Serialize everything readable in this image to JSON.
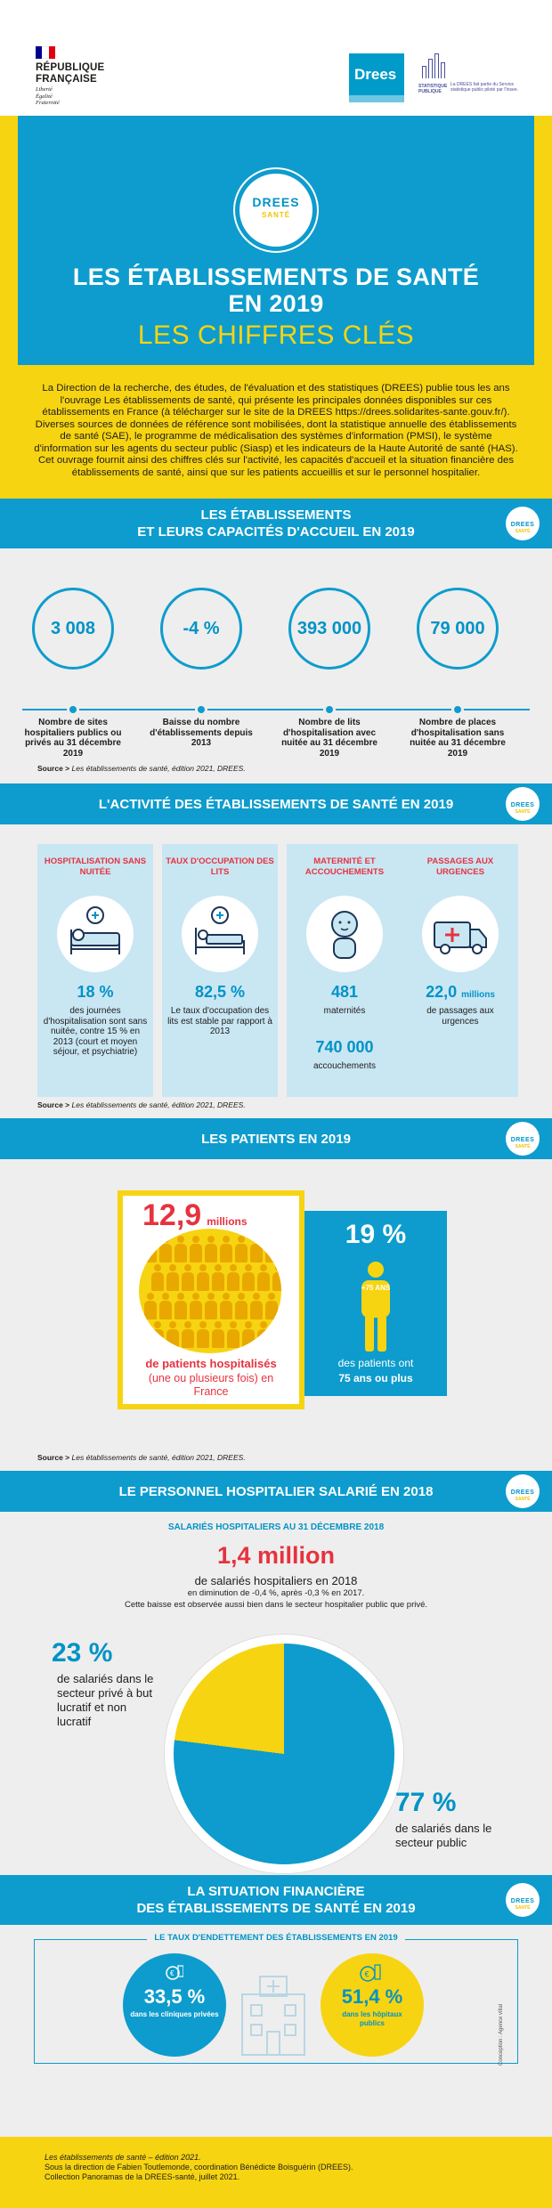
{
  "header": {
    "republique_line1": "RÉPUBLIQUE",
    "republique_line2": "FRANÇAISE",
    "devise": [
      "Liberté",
      "Égalité",
      "Fraternité"
    ],
    "drees_logo": "Drees",
    "ssp_line1": "STATISTIQUE",
    "ssp_line2": "PUBLIQUE",
    "ssp_desc": "La DREES fait partie du Service statistique public piloté par l'Insee.",
    "colors": {
      "marianne_blue": "#000091",
      "marianne_red": "#e1000f"
    }
  },
  "hero": {
    "badge_top": "DREES",
    "badge_bottom": "SANTÉ",
    "title_line1": "LES ÉTABLISSEMENTS DE SANTÉ",
    "title_line2": "EN 2019",
    "subtitle": "LES CHIFFRES CLÉS"
  },
  "intro": {
    "text": "La Direction de la recherche, des études, de l'évaluation et des statistiques (DREES) publie tous les ans l'ouvrage Les établissements de santé, qui présente les principales données disponibles sur ces établissements en France (à télécharger sur le site de la DREES https://drees.solidarites-sante.gouv.fr/). Diverses sources de données de référence sont mobilisées, dont la statistique annuelle des établissements de santé (SAE), le programme de médicalisation des systèmes d'information (PMSI), le système d'information sur les agents du secteur public (Siasp) et les indicateurs de la Haute Autorité de santé (HAS). Cet ouvrage fournit ainsi des chiffres clés sur l'activité, les capacités d'accueil et la situation financière des établissements de santé, ainsi que sur les patients accueillis et sur le personnel hospitalier."
  },
  "badge_small": {
    "top": "DREES",
    "bottom": "SANTÉ"
  },
  "section1": {
    "title_line1": "LES ÉTABLISSEMENTS",
    "title_line2": "ET LEURS CAPACITÉS D'ACCUEIL EN 2019",
    "stats": [
      {
        "value": "3 008",
        "caption": "Nombre de sites hospitaliers publics ou privés au 31 décembre 2019"
      },
      {
        "value": "-4 %",
        "caption": "Baisse du nombre d'établissements depuis 2013"
      },
      {
        "value": "393 000",
        "caption": "Nombre de lits d'hospitalisation avec nuitée au 31 décembre 2019"
      },
      {
        "value": "79 000",
        "caption": "Nombre de places d'hospitalisation sans nuitée au 31 décembre 2019"
      }
    ],
    "source_label": "Source >",
    "source_text": "Les établissements de santé, édition 2021, DREES."
  },
  "section2": {
    "title": "L'ACTIVITÉ DES ÉTABLISSEMENTS DE SANTÉ EN 2019",
    "panels": [
      {
        "title": "HOSPITALISATION SANS NUITÉE",
        "value": "18 %",
        "text": "des journées d'hospitalisation sont sans nuitée, contre 15 % en 2013 (court et moyen séjour, et psychiatrie)"
      },
      {
        "title": "TAUX D'OCCUPATION DES LITS",
        "value": "82,5 %",
        "text": "Le taux d'occupation des lits est stable par rapport à 2013"
      },
      {
        "title": "MATERNITÉ ET ACCOUCHEMENTS",
        "value": "481",
        "text": "maternités",
        "value2": "740 000",
        "text2": "accouchements"
      },
      {
        "title": "PASSAGES AUX URGENCES",
        "value": "22,0",
        "value_unit": "millions",
        "text": "de passages aux urgences"
      }
    ],
    "source_label": "Source >",
    "source_text": "Les établissements de santé, édition 2021, DREES."
  },
  "section3": {
    "title": "LES PATIENTS EN 2019",
    "patients_value": "12,9",
    "patients_unit": "millions",
    "patients_caption_bold": "de patients hospitalisés",
    "patients_caption": "(une ou plusieurs fois) en France",
    "elderly_value": "19 %",
    "elderly_badge": "+75 ANS",
    "elderly_caption": "des patients ont",
    "elderly_caption_bold": "75 ans ou plus",
    "source_label": "Source >",
    "source_text": "Les établissements de santé, édition 2021, DREES."
  },
  "section4": {
    "title": "LE PERSONNEL HOSPITALIER SALARIÉ EN 2018",
    "subtitle": "SALARIÉS HOSPITALIERS AU 31 DÉCEMBRE 2018",
    "big_value": "1,4 million",
    "line1": "de salariés hospitaliers en 2018",
    "line2": "en diminution de -0,4 %, après -0,3 % en 2017.",
    "line3": "Cette baisse est observée aussi bien dans le secteur hospitalier public que privé.",
    "private_value": "23 %",
    "private_text": "de salariés dans le secteur privé à but lucratif et non lucratif",
    "public_value": "77 %",
    "public_text": "de salariés dans le secteur public",
    "chart_data": {
      "type": "pie",
      "categories": [
        "secteur public",
        "secteur privé à but lucratif et non lucratif"
      ],
      "values": [
        77,
        23
      ],
      "colors": [
        "#0d9ccd",
        "#f7d411"
      ]
    }
  },
  "section5": {
    "title_line1": "LA SITUATION FINANCIÈRE",
    "title_line2": "DES ÉTABLISSEMENTS DE SANTÉ EN 2019",
    "box_title": "LE TAUX D'ENDETTEMENT DES ÉTABLISSEMENTS EN 2019",
    "private_value": "33,5 %",
    "private_text": "dans les cliniques privées",
    "public_value": "51,4 %",
    "public_text": "dans les hôpitaux publics",
    "credit": "Conception : Agence vitlal"
  },
  "footer": {
    "line1": "Les établissements de santé – édition 2021.",
    "line2": "Sous la direction de Fabien Toutlemonde, coordination Bénédicte Boisguérin (DREES).",
    "line3": "Collection Panoramas de la DREES-santé, juillet 2021."
  }
}
